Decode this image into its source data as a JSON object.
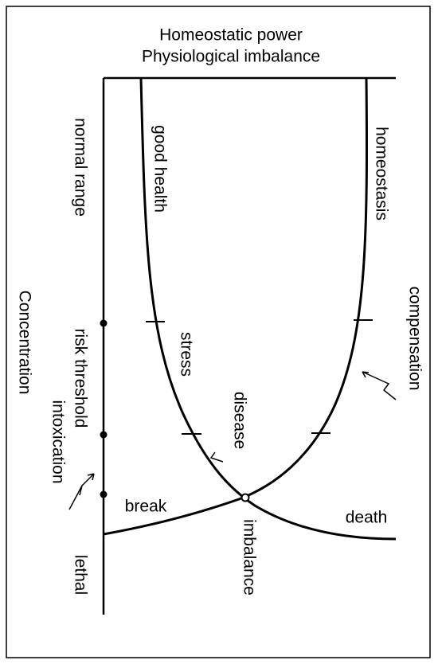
{
  "header": {
    "title_line1": "Homeostatic  power",
    "title_line2": "Physiological imbalance"
  },
  "axis": {
    "label": "Concentration",
    "zones": [
      "normal range",
      "risk threshold",
      "intoxication",
      "lethal"
    ]
  },
  "curves": {
    "health": {
      "top_label": "good health",
      "mid_label": "stress",
      "low_label": "disease",
      "end_label": "death"
    },
    "homeostasis": {
      "top_label": "homeostasis",
      "mid_label": "compensation",
      "end_label": "break"
    }
  },
  "intersection": {
    "label": "imbalance"
  }
}
